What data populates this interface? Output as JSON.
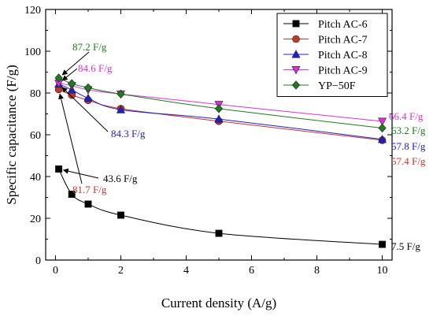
{
  "chart_data": {
    "type": "line",
    "xlabel": "Current density (A/g)",
    "ylabel": "Specific capacitance (F/g)",
    "xlim": [
      -0.3,
      10.3
    ],
    "ylim": [
      0,
      120
    ],
    "xticks": [
      0,
      2,
      4,
      6,
      8,
      10
    ],
    "yticks": [
      0,
      20,
      40,
      60,
      80,
      100,
      120
    ],
    "grid": false,
    "legend_position": "top-right",
    "series": [
      {
        "name": "Pitch AC-6",
        "color": "#000000",
        "marker": "square",
        "x": [
          0.1,
          0.5,
          1,
          2,
          5,
          10
        ],
        "y": [
          43.6,
          31.5,
          26.8,
          21.5,
          12.8,
          7.5
        ]
      },
      {
        "name": "Pitch AC-7",
        "color": "#c0392b",
        "marker": "circle",
        "x": [
          0.1,
          0.5,
          1,
          2,
          5,
          10
        ],
        "y": [
          81.7,
          79,
          76.5,
          72.5,
          66.5,
          57.4
        ]
      },
      {
        "name": "Pitch AC-8",
        "color": "#1f1fd1",
        "marker": "triangle-up",
        "x": [
          0.1,
          0.5,
          1,
          2,
          5,
          10
        ],
        "y": [
          84.3,
          81.5,
          77.5,
          72,
          67.5,
          57.8
        ]
      },
      {
        "name": "Pitch AC-9",
        "color": "#d633d6",
        "marker": "triangle-down",
        "x": [
          0.1,
          0.5,
          1,
          2,
          5,
          10
        ],
        "y": [
          84.6,
          83.5,
          81.5,
          79.5,
          74.5,
          66.4
        ]
      },
      {
        "name": "YP−50F",
        "color": "#1e7b1e",
        "marker": "diamond",
        "x": [
          0.1,
          0.5,
          1,
          2,
          5,
          10
        ],
        "y": [
          87.2,
          84.5,
          82.5,
          79.5,
          72.5,
          63.2
        ]
      }
    ],
    "annotations": [
      {
        "text": "87.2 F/g",
        "color": "#1e7b1e",
        "arrow": true
      },
      {
        "text": "84.6 F/g",
        "color": "#d633d6",
        "arrow": true
      },
      {
        "text": "84.3 F/g",
        "color": "#1f1fd1",
        "arrow": true
      },
      {
        "text": "81.7 F/g",
        "color": "#c0392b",
        "arrow": true
      },
      {
        "text": "43.6 F/g",
        "color": "#000000",
        "arrow": true
      },
      {
        "text": "66.4 F/g",
        "color": "#d633d6",
        "arrow": false
      },
      {
        "text": "63.2 F/g",
        "color": "#1e7b1e",
        "arrow": false
      },
      {
        "text": "57.8 F/g",
        "color": "#1f1fd1",
        "arrow": false
      },
      {
        "text": "57.4 F/g",
        "color": "#c0392b",
        "arrow": false
      },
      {
        "text": "7.5 F/g",
        "color": "#000000",
        "arrow": false
      }
    ]
  }
}
